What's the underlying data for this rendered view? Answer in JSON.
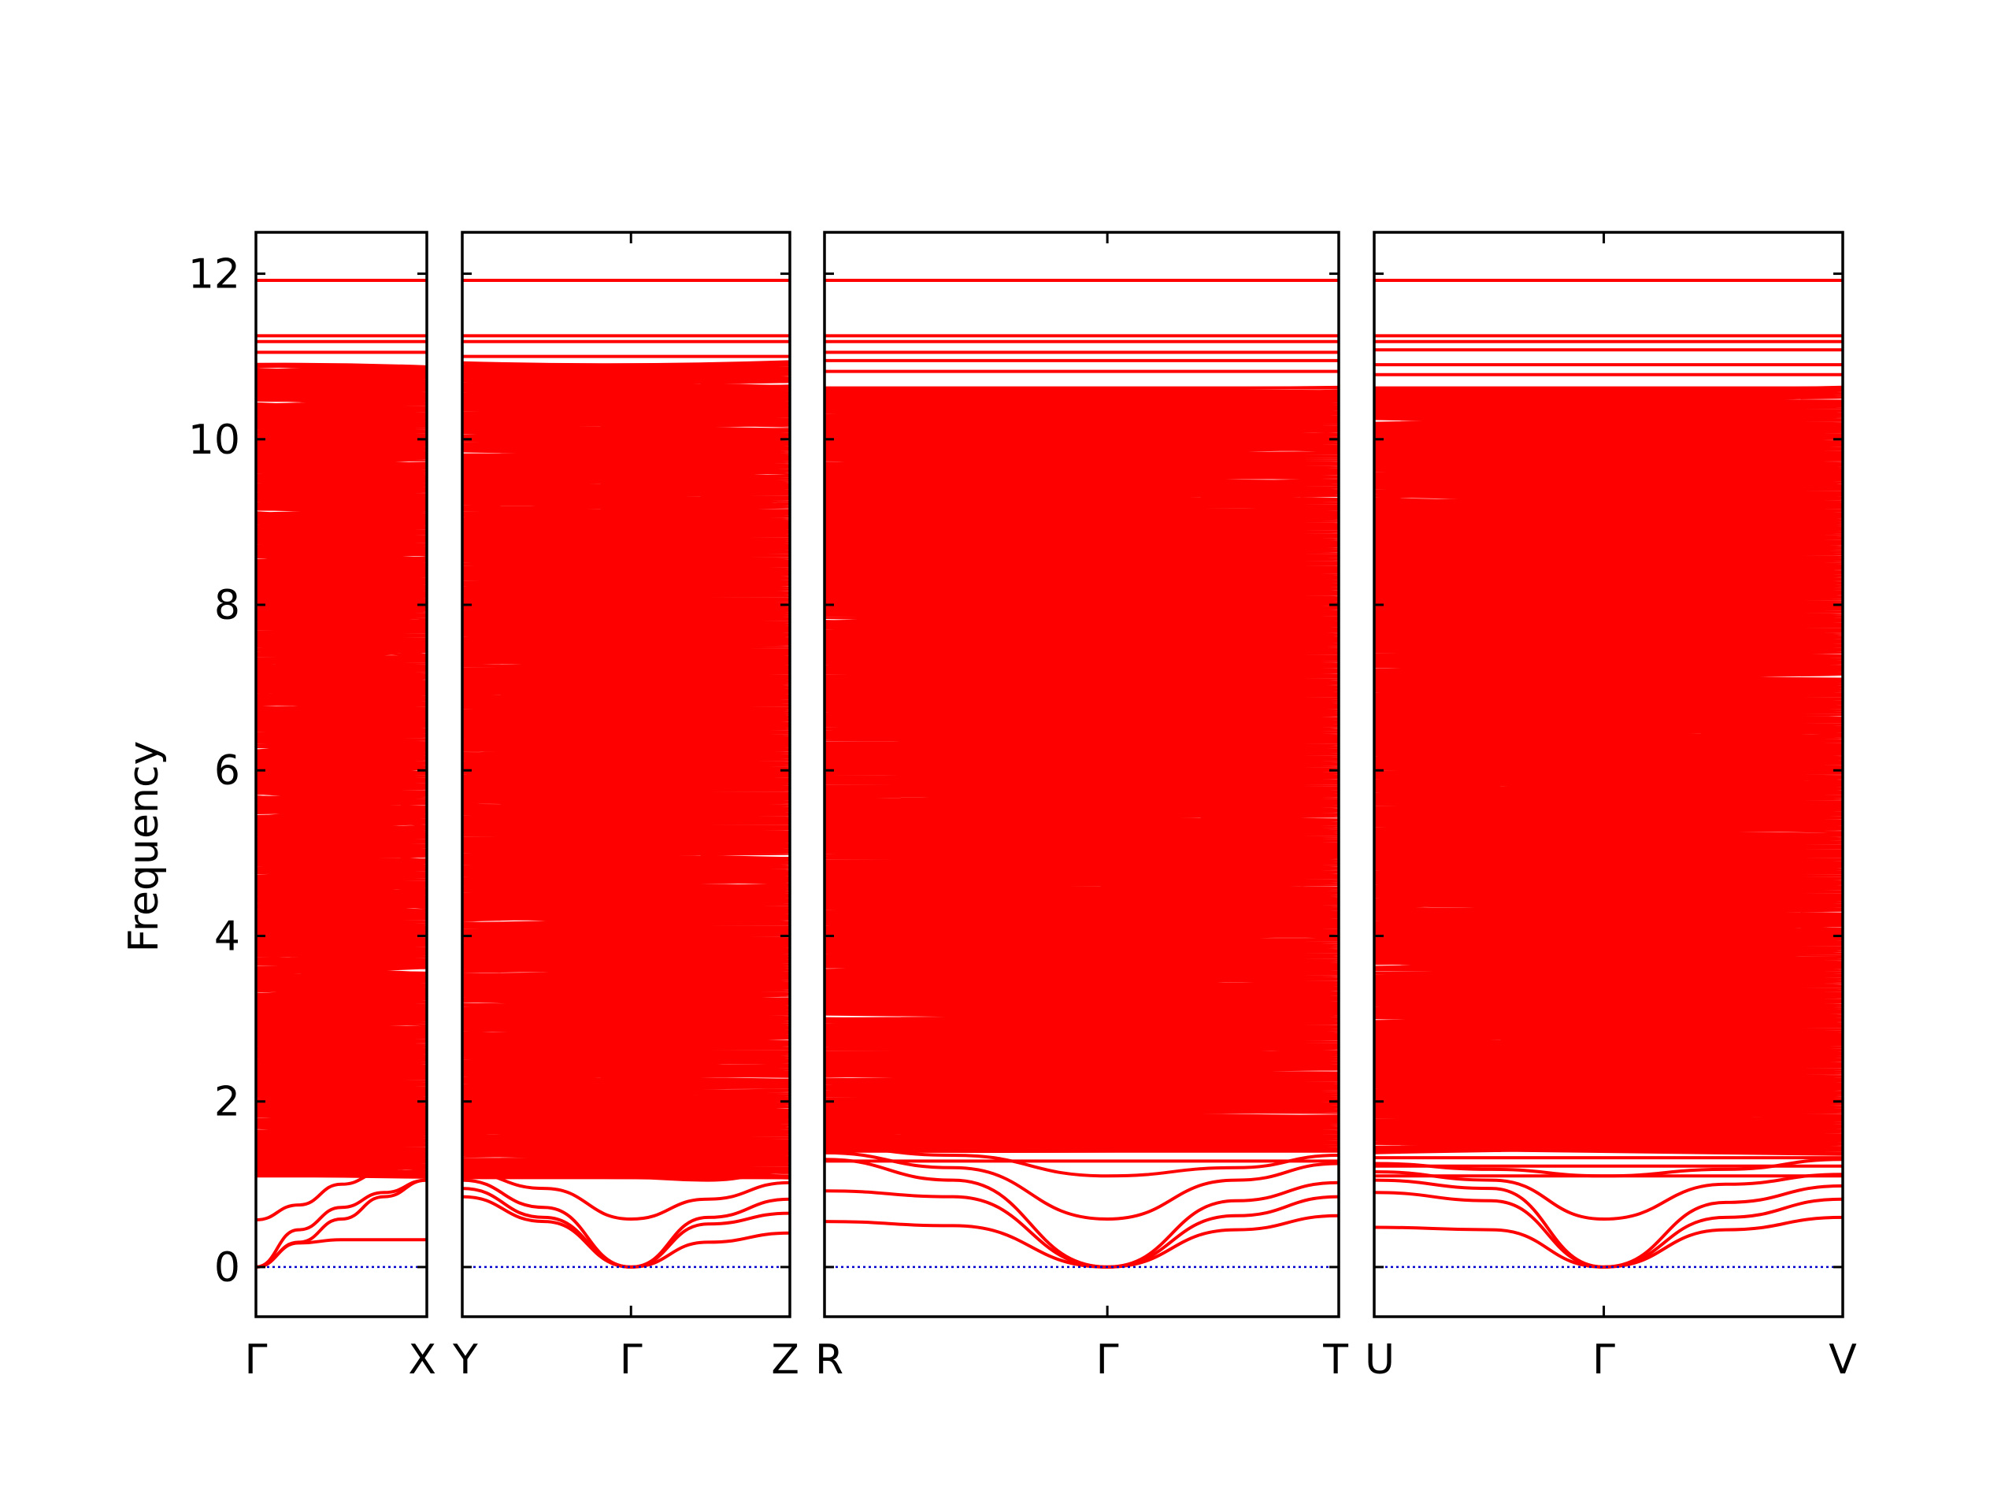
{
  "chart_data": {
    "type": "line",
    "title": "",
    "ylabel": "Frequency",
    "xlabel": "",
    "ylim": [
      -0.6,
      12.5
    ],
    "yticks": [
      0,
      2,
      4,
      6,
      8,
      10,
      12
    ],
    "ytick_labels": [
      "0",
      "2",
      "4",
      "6",
      "8",
      "10",
      "12"
    ],
    "grid": false,
    "line_color": "#ff0000",
    "zero_line_color": "#0000cc",
    "panels": [
      {
        "id": "panel-1",
        "kpoints": [
          "Γ",
          "X"
        ],
        "segment_fractions": [
          1.0
        ],
        "branch_count_estimate": 1000,
        "acoustic_branches": [
          {
            "x": [
              0.0,
              0.25,
              0.5,
              0.75,
              1.0
            ],
            "y": [
              0.0,
              0.29,
              0.33,
              0.33,
              0.33
            ]
          },
          {
            "x": [
              0.0,
              0.25,
              0.5,
              0.75,
              1.0
            ],
            "y": [
              0.0,
              0.3,
              0.58,
              0.85,
              1.05
            ]
          },
          {
            "x": [
              0.0,
              0.25,
              0.5,
              0.75,
              1.0
            ],
            "y": [
              0.0,
              0.45,
              0.72,
              0.9,
              1.05
            ]
          },
          {
            "x": [
              0.0,
              0.25,
              0.5,
              0.75,
              1.0
            ],
            "y": [
              0.57,
              0.75,
              1.0,
              1.15,
              1.12
            ]
          }
        ],
        "dense_band_range": [
          1.1,
          10.9
        ],
        "flat_bands": [
          1.1,
          1.23,
          1.33,
          1.42,
          1.53,
          1.7,
          1.82,
          1.9,
          10.0,
          10.17,
          10.35,
          10.5,
          10.6,
          10.7,
          10.83,
          11.05,
          11.18,
          11.25,
          11.92
        ]
      },
      {
        "id": "panel-2",
        "kpoints": [
          "Y",
          "Γ",
          "Z"
        ],
        "segment_fractions": [
          0.515,
          0.485
        ],
        "branch_count_estimate": 1000,
        "acoustic_branches": [
          {
            "x": [
              0.0,
              0.25,
              0.515,
              0.75,
              1.0
            ],
            "y": [
              0.85,
              0.55,
              0.0,
              0.3,
              0.41
            ]
          },
          {
            "x": [
              0.0,
              0.25,
              0.515,
              0.75,
              1.0
            ],
            "y": [
              0.95,
              0.6,
              0.0,
              0.52,
              0.65
            ]
          },
          {
            "x": [
              0.0,
              0.25,
              0.515,
              0.75,
              1.0
            ],
            "y": [
              1.05,
              0.72,
              0.0,
              0.6,
              0.82
            ]
          },
          {
            "x": [
              0.0,
              0.25,
              0.515,
              0.75,
              1.0
            ],
            "y": [
              1.15,
              0.95,
              0.58,
              0.82,
              1.02
            ]
          },
          {
            "x": [
              0.0,
              0.25,
              0.515,
              0.75,
              1.0
            ],
            "y": [
              1.25,
              1.1,
              1.08,
              1.05,
              1.15
            ]
          }
        ],
        "dense_band_range": [
          1.1,
          10.9
        ],
        "flat_bands": [
          1.08,
          1.3,
          1.38,
          1.52,
          1.62,
          1.75,
          10.1,
          10.2,
          10.38,
          10.52,
          10.6,
          10.72,
          10.83,
          11.0,
          11.18,
          11.25,
          11.92
        ]
      },
      {
        "id": "panel-3",
        "kpoints": [
          "R",
          "Γ",
          "T"
        ],
        "segment_fractions": [
          0.55,
          0.45
        ],
        "branch_count_estimate": 1000,
        "acoustic_branches": [
          {
            "x": [
              0.0,
              0.25,
              0.55,
              0.8,
              1.0
            ],
            "y": [
              0.55,
              0.5,
              0.0,
              0.45,
              0.62
            ]
          },
          {
            "x": [
              0.0,
              0.25,
              0.55,
              0.8,
              1.0
            ],
            "y": [
              0.92,
              0.85,
              0.0,
              0.62,
              0.85
            ]
          },
          {
            "x": [
              0.0,
              0.25,
              0.55,
              0.8,
              1.0
            ],
            "y": [
              1.3,
              1.05,
              0.0,
              0.8,
              1.02
            ]
          },
          {
            "x": [
              0.0,
              0.25,
              0.55,
              0.8,
              1.0
            ],
            "y": [
              1.38,
              1.2,
              0.58,
              1.05,
              1.25
            ]
          },
          {
            "x": [
              0.0,
              0.25,
              0.55,
              0.8,
              1.0
            ],
            "y": [
              1.45,
              1.35,
              1.1,
              1.2,
              1.35
            ]
          }
        ],
        "dense_band_range": [
          1.4,
          10.6
        ],
        "flat_bands": [
          1.28,
          1.4,
          1.5,
          1.62,
          1.78,
          10.2,
          10.38,
          10.55,
          10.62,
          10.82,
          10.95,
          11.05,
          11.18,
          11.25,
          11.92
        ]
      },
      {
        "id": "panel-4",
        "kpoints": [
          "U",
          "Γ",
          "V"
        ],
        "segment_fractions": [
          0.49,
          0.51
        ],
        "branch_count_estimate": 1000,
        "acoustic_branches": [
          {
            "x": [
              0.0,
              0.25,
              0.49,
              0.75,
              1.0
            ],
            "y": [
              0.48,
              0.45,
              0.0,
              0.45,
              0.6
            ]
          },
          {
            "x": [
              0.0,
              0.25,
              0.49,
              0.75,
              1.0
            ],
            "y": [
              0.9,
              0.8,
              0.0,
              0.6,
              0.82
            ]
          },
          {
            "x": [
              0.0,
              0.25,
              0.49,
              0.75,
              1.0
            ],
            "y": [
              1.05,
              0.95,
              0.0,
              0.78,
              0.98
            ]
          },
          {
            "x": [
              0.0,
              0.25,
              0.49,
              0.75,
              1.0
            ],
            "y": [
              1.15,
              1.05,
              0.58,
              1.0,
              1.12
            ]
          },
          {
            "x": [
              0.0,
              0.25,
              0.49,
              0.75,
              1.0
            ],
            "y": [
              1.25,
              1.18,
              1.1,
              1.18,
              1.3
            ]
          }
        ],
        "dense_band_range": [
          1.4,
          10.6
        ],
        "flat_bands": [
          1.1,
          1.22,
          1.32,
          1.42,
          1.55,
          1.65,
          10.15,
          10.3,
          10.45,
          10.62,
          10.78,
          10.9,
          11.08,
          11.18,
          11.25,
          11.92
        ]
      }
    ]
  }
}
